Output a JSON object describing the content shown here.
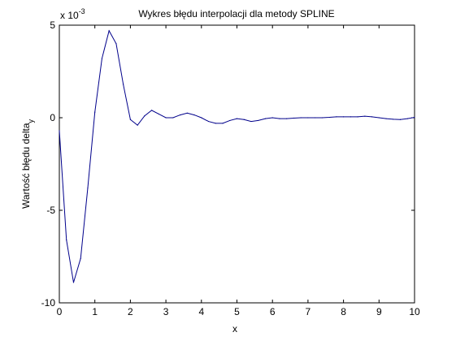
{
  "chart_data": {
    "type": "line",
    "title": "Wykres błędu interpolacji dla metody SPLINE",
    "xlabel": "x",
    "ylabel_main": "Wartość błędu delta",
    "ylabel_sub": "y",
    "exponent_base": "x 10",
    "exponent_power": "-3",
    "xlim": [
      0,
      10
    ],
    "ylim": [
      -10,
      5
    ],
    "xticks": [
      0,
      1,
      2,
      3,
      4,
      5,
      6,
      7,
      8,
      9,
      10
    ],
    "xtick_labels": [
      "0",
      "1",
      "2",
      "3",
      "4",
      "5",
      "6",
      "7",
      "8",
      "9",
      "10"
    ],
    "yticks": [
      -10,
      -5,
      0,
      5
    ],
    "ytick_labels": [
      "-10",
      "-5",
      "0",
      "5"
    ],
    "grid": false,
    "line_color": "#00008b",
    "series": [
      {
        "x": [
          0,
          0.2,
          0.4,
          0.6,
          0.8,
          1.0,
          1.2,
          1.4,
          1.6,
          1.8,
          2.0,
          2.2,
          2.4,
          2.6,
          2.8,
          3.0,
          3.2,
          3.4,
          3.6,
          3.8,
          4.0,
          4.2,
          4.4,
          4.6,
          4.8,
          5.0,
          5.2,
          5.4,
          5.6,
          5.8,
          6.0,
          6.2,
          6.4,
          6.6,
          6.8,
          7.0,
          7.2,
          7.4,
          7.6,
          7.8,
          8.0,
          8.2,
          8.4,
          8.6,
          8.8,
          9.0,
          9.2,
          9.4,
          9.6,
          9.8,
          10.0
        ],
        "y": [
          -0.7,
          -6.6,
          -8.9,
          -7.6,
          -3.8,
          0.3,
          3.2,
          4.7,
          4.0,
          1.8,
          -0.1,
          -0.4,
          0.1,
          0.4,
          0.2,
          0.0,
          0.0,
          0.15,
          0.25,
          0.15,
          0.0,
          -0.2,
          -0.3,
          -0.3,
          -0.15,
          -0.05,
          -0.1,
          -0.2,
          -0.15,
          -0.05,
          0.0,
          -0.05,
          -0.05,
          -0.02,
          0.0,
          0.0,
          0.0,
          0.0,
          0.02,
          0.05,
          0.05,
          0.05,
          0.05,
          0.08,
          0.05,
          0.0,
          -0.05,
          -0.08,
          -0.1,
          -0.05,
          0.02
        ]
      }
    ]
  }
}
